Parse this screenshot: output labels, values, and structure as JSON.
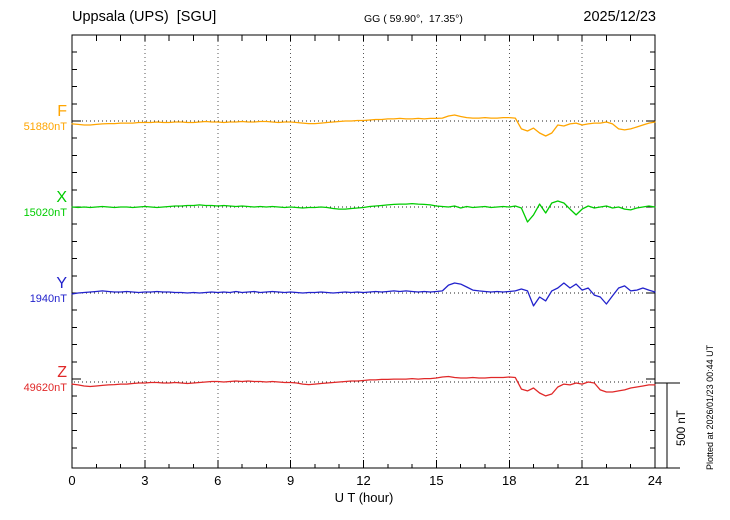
{
  "header": {
    "station": "Uppsala (UPS)  [SGU]",
    "coords": "GG ( 59.90°,  17.35°)",
    "date": "2025/12/23"
  },
  "axis": {
    "x_label": "U T (hour)",
    "x_ticks": [
      0,
      3,
      6,
      9,
      12,
      15,
      18,
      21,
      24
    ],
    "x_minor_tick_hours": 1,
    "x_range_hours": [
      0,
      24
    ]
  },
  "scale_bar": {
    "label": "500 nT",
    "nT": 500
  },
  "footer_note": "Plotted at 2026/01/23 00:44 UT",
  "chart_data": {
    "type": "line",
    "title": "Uppsala (UPS) [SGU] magnetogram, 2025/12/23",
    "xlabel": "U T (hour)",
    "x_range_hours": [
      0,
      24
    ],
    "sample_interval_hours": 0.25,
    "grid": "vertical dotted lines every 3 h; dotted baseline per component",
    "scale_bar_nT": 500,
    "series": [
      {
        "name": "F",
        "value_label": "51880nT",
        "baseline_nT": 51880,
        "color": "#FFA500",
        "offsets_nT": [
          -17,
          -20,
          -23,
          -23,
          -20,
          -17,
          -15,
          -15,
          -12,
          -12,
          -12,
          -9,
          -9,
          -9,
          -6,
          -9,
          -9,
          -6,
          -6,
          -9,
          -9,
          -6,
          -3,
          -6,
          -6,
          -9,
          -6,
          -6,
          -3,
          -6,
          -6,
          -3,
          -3,
          -6,
          -9,
          -6,
          -6,
          -9,
          -12,
          -15,
          -15,
          -12,
          -9,
          -6,
          -3,
          0,
          0,
          3,
          3,
          6,
          9,
          9,
          12,
          12,
          15,
          12,
          12,
          15,
          12,
          15,
          15,
          17,
          29,
          35,
          26,
          20,
          17,
          17,
          20,
          17,
          17,
          20,
          20,
          17,
          -46,
          -58,
          -41,
          -70,
          -87,
          -70,
          -23,
          -29,
          -17,
          -12,
          -23,
          -17,
          -12,
          -12,
          -6,
          -17,
          -46,
          -52,
          -46,
          -35,
          -23,
          -12,
          -6
        ]
      },
      {
        "name": "X",
        "value_label": "15020nT",
        "baseline_nT": 15020,
        "color": "#00CC00",
        "offsets_nT": [
          0,
          -3,
          0,
          -3,
          0,
          3,
          0,
          -3,
          0,
          0,
          -3,
          0,
          3,
          0,
          -3,
          0,
          3,
          6,
          6,
          9,
          9,
          12,
          9,
          9,
          6,
          9,
          6,
          3,
          6,
          3,
          0,
          3,
          0,
          3,
          0,
          -3,
          0,
          -3,
          -6,
          -3,
          -3,
          0,
          -3,
          -9,
          -12,
          -12,
          -9,
          -6,
          -3,
          3,
          6,
          9,
          12,
          15,
          17,
          17,
          20,
          17,
          15,
          12,
          6,
          3,
          0,
          6,
          -6,
          3,
          -3,
          0,
          3,
          -3,
          0,
          3,
          0,
          6,
          -6,
          -87,
          -46,
          17,
          -35,
          23,
          35,
          23,
          -12,
          -46,
          -12,
          6,
          -6,
          0,
          6,
          -6,
          0,
          -12,
          -17,
          -6,
          0,
          6,
          0
        ]
      },
      {
        "name": "Y",
        "value_label": "1940nT",
        "baseline_nT": 1940,
        "color": "#2222CC",
        "offsets_nT": [
          -6,
          0,
          3,
          6,
          9,
          12,
          9,
          6,
          6,
          9,
          6,
          3,
          6,
          6,
          9,
          6,
          6,
          3,
          3,
          0,
          3,
          0,
          3,
          6,
          3,
          6,
          3,
          9,
          3,
          6,
          9,
          3,
          6,
          9,
          6,
          3,
          6,
          3,
          0,
          3,
          3,
          6,
          3,
          0,
          3,
          6,
          3,
          6,
          3,
          6,
          9,
          6,
          9,
          12,
          9,
          12,
          9,
          6,
          9,
          6,
          9,
          12,
          46,
          58,
          52,
          35,
          17,
          12,
          9,
          6,
          9,
          6,
          9,
          12,
          23,
          12,
          -75,
          -23,
          -46,
          12,
          29,
          58,
          29,
          52,
          17,
          29,
          -12,
          -23,
          -64,
          -17,
          29,
          41,
          12,
          17,
          29,
          17,
          6
        ]
      },
      {
        "name": "Z",
        "value_label": "49620nT",
        "baseline_nT": 49620,
        "color": "#E02828",
        "offsets_nT": [
          -12,
          -17,
          -23,
          -26,
          -23,
          -20,
          -17,
          -15,
          -12,
          -12,
          -9,
          -6,
          -6,
          -3,
          -3,
          -6,
          -6,
          -3,
          -6,
          -9,
          -6,
          -3,
          0,
          3,
          3,
          0,
          3,
          6,
          3,
          6,
          3,
          3,
          0,
          3,
          0,
          -3,
          -3,
          -6,
          -12,
          -15,
          -12,
          -9,
          -6,
          -3,
          0,
          3,
          6,
          6,
          9,
          12,
          12,
          15,
          15,
          17,
          17,
          17,
          20,
          17,
          20,
          20,
          23,
          29,
          32,
          26,
          23,
          23,
          26,
          23,
          23,
          26,
          26,
          26,
          29,
          26,
          -41,
          -52,
          -35,
          -64,
          -81,
          -70,
          -29,
          -12,
          -17,
          -6,
          -12,
          0,
          -6,
          -46,
          -58,
          -58,
          -52,
          -46,
          -35,
          -29,
          -23,
          -17,
          -17
        ]
      }
    ]
  }
}
